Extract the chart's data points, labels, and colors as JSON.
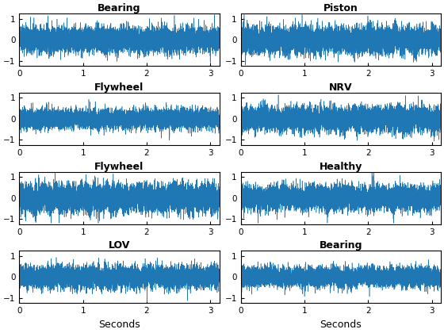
{
  "titles": [
    "Bearing",
    "Piston",
    "Flywheel",
    "NRV",
    "Flywheel",
    "Healthy",
    "LOV",
    "Bearing"
  ],
  "line_color": "#1f77b4",
  "xlim": [
    0,
    3.14
  ],
  "ylim": [
    -1.25,
    1.25
  ],
  "yticks": [
    -1,
    0,
    1
  ],
  "xticks": [
    0,
    1,
    2,
    3
  ],
  "xlabel": "Seconds",
  "n_points": 10000,
  "duration": 3.14,
  "background_color": "#ffffff",
  "title_fontsize": 9,
  "tick_fontsize": 7.5,
  "label_fontsize": 9,
  "linewidth": 0.4,
  "seeds": [
    1,
    2,
    3,
    4,
    5,
    6,
    7,
    8
  ],
  "base_amplitudes": [
    0.28,
    0.3,
    0.22,
    0.28,
    0.32,
    0.28,
    0.25,
    0.22
  ]
}
